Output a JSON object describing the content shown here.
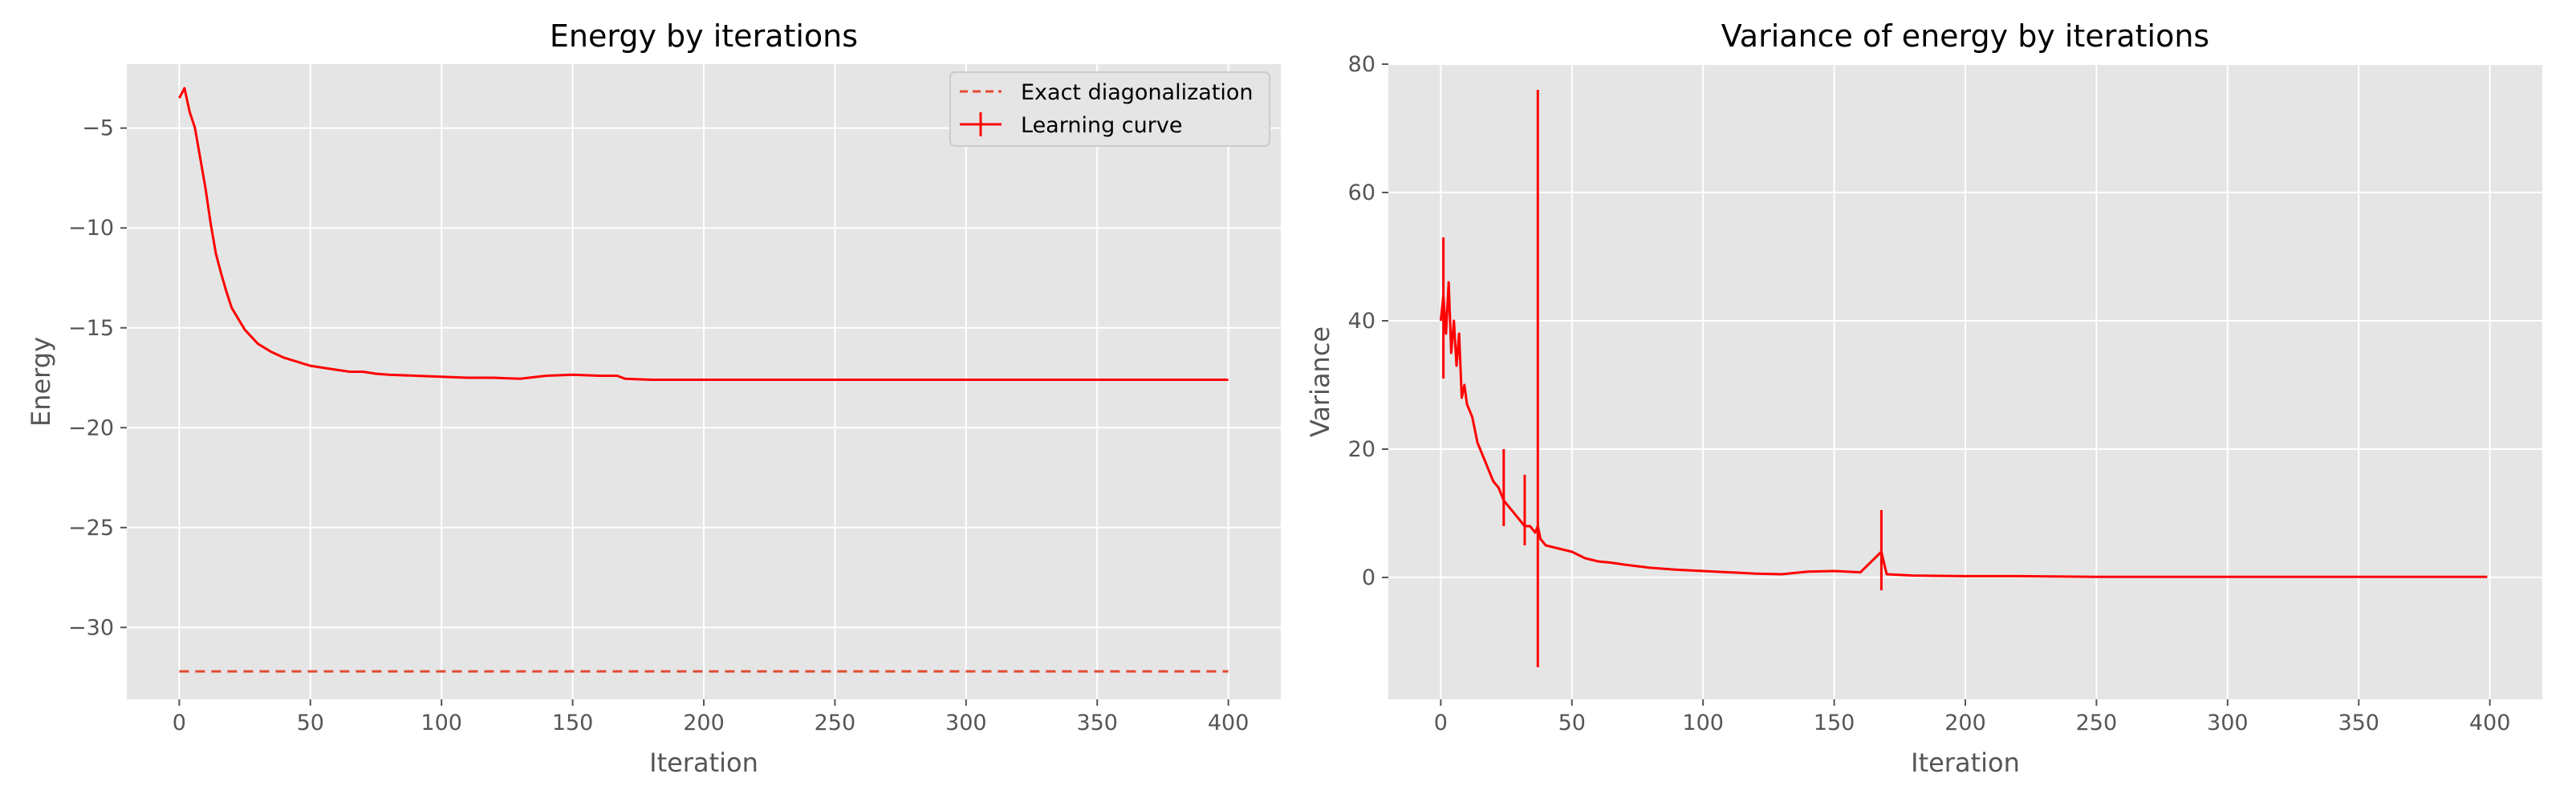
{
  "chart_data": [
    {
      "type": "line",
      "title": "Energy by iterations",
      "xlabel": "Iteration",
      "ylabel": "Energy",
      "xlim": [
        -20,
        420
      ],
      "ylim": [
        -33.6,
        -1.8
      ],
      "grid": true,
      "legend_position": "top-right",
      "xticks": [
        0,
        50,
        100,
        150,
        200,
        250,
        300,
        350,
        400
      ],
      "xtick_labels": [
        "0",
        "50",
        "100",
        "150",
        "200",
        "250",
        "300",
        "350",
        "400"
      ],
      "yticks": [
        -30,
        -25,
        -20,
        -15,
        -10,
        -5
      ],
      "ytick_labels": [
        "−30",
        "−25",
        "−20",
        "−15",
        "−10",
        "−5"
      ],
      "series": [
        {
          "name": "Exact diagonalization",
          "style": "dashed",
          "color": "#e24a33",
          "x": [
            0,
            400
          ],
          "y": [
            -32.2,
            -32.2
          ]
        },
        {
          "name": "Learning curve",
          "style": "solid-errorbar",
          "color": "#ff0000",
          "x": [
            0,
            2,
            4,
            6,
            8,
            10,
            12,
            14,
            16,
            18,
            20,
            25,
            30,
            35,
            40,
            45,
            50,
            55,
            60,
            65,
            70,
            75,
            80,
            90,
            100,
            110,
            120,
            130,
            140,
            150,
            160,
            167,
            170,
            180,
            200,
            220,
            250,
            300,
            350,
            400
          ],
          "y": [
            -3.5,
            -3.0,
            -4.2,
            -5.0,
            -6.5,
            -8.0,
            -9.8,
            -11.3,
            -12.3,
            -13.2,
            -14.0,
            -15.1,
            -15.8,
            -16.2,
            -16.5,
            -16.7,
            -16.9,
            -17.0,
            -17.1,
            -17.2,
            -17.2,
            -17.3,
            -17.35,
            -17.4,
            -17.45,
            -17.5,
            -17.5,
            -17.55,
            -17.4,
            -17.35,
            -17.4,
            -17.4,
            -17.55,
            -17.6,
            -17.6,
            -17.6,
            -17.6,
            -17.6,
            -17.6,
            -17.6
          ]
        }
      ]
    },
    {
      "type": "line",
      "title": "Variance of energy by iterations",
      "xlabel": "Iteration",
      "ylabel": "Variance",
      "xlim": [
        -20,
        420
      ],
      "ylim": [
        -19,
        80
      ],
      "grid": true,
      "xticks": [
        0,
        50,
        100,
        150,
        200,
        250,
        300,
        350,
        400
      ],
      "xtick_labels": [
        "0",
        "50",
        "100",
        "150",
        "200",
        "250",
        "300",
        "350",
        "400"
      ],
      "yticks": [
        0,
        20,
        40,
        60,
        80
      ],
      "ytick_labels": [
        "0",
        "20",
        "40",
        "60",
        "80"
      ],
      "series": [
        {
          "name": "",
          "style": "solid-errorbar",
          "color": "#ff0000",
          "x": [
            0,
            1,
            2,
            3,
            4,
            5,
            6,
            7,
            8,
            9,
            10,
            12,
            14,
            16,
            18,
            20,
            22,
            24,
            26,
            28,
            30,
            32,
            34,
            36,
            37,
            38,
            40,
            45,
            50,
            55,
            60,
            65,
            70,
            80,
            90,
            100,
            110,
            120,
            130,
            140,
            150,
            160,
            168,
            170,
            180,
            200,
            220,
            250,
            300,
            350,
            399
          ],
          "y": [
            40,
            44,
            38,
            46,
            35,
            40,
            33,
            38,
            28,
            30,
            27,
            25,
            21,
            19,
            17,
            15,
            14,
            12,
            11,
            10,
            9,
            8,
            8,
            7,
            8,
            6,
            5,
            4.5,
            4,
            3,
            2.5,
            2.3,
            2,
            1.5,
            1.2,
            1,
            0.8,
            0.6,
            0.5,
            0.9,
            1.0,
            0.8,
            4,
            0.5,
            0.3,
            0.2,
            0.2,
            0.1,
            0.1,
            0.1,
            0.1
          ],
          "spikes": [
            {
              "x": 37,
              "low": -14,
              "high": 76
            },
            {
              "x": 168,
              "low": -2,
              "high": 10.5
            },
            {
              "x": 1,
              "low": 31,
              "high": 53
            },
            {
              "x": 24,
              "low": 8,
              "high": 20
            },
            {
              "x": 32,
              "low": 5,
              "high": 16
            }
          ]
        }
      ]
    }
  ],
  "colors": {
    "plot_background": "#e5e5e5",
    "grid": "#ffffff",
    "tick_text": "#555555",
    "label_text": "#555555",
    "title_text": "#000000"
  }
}
